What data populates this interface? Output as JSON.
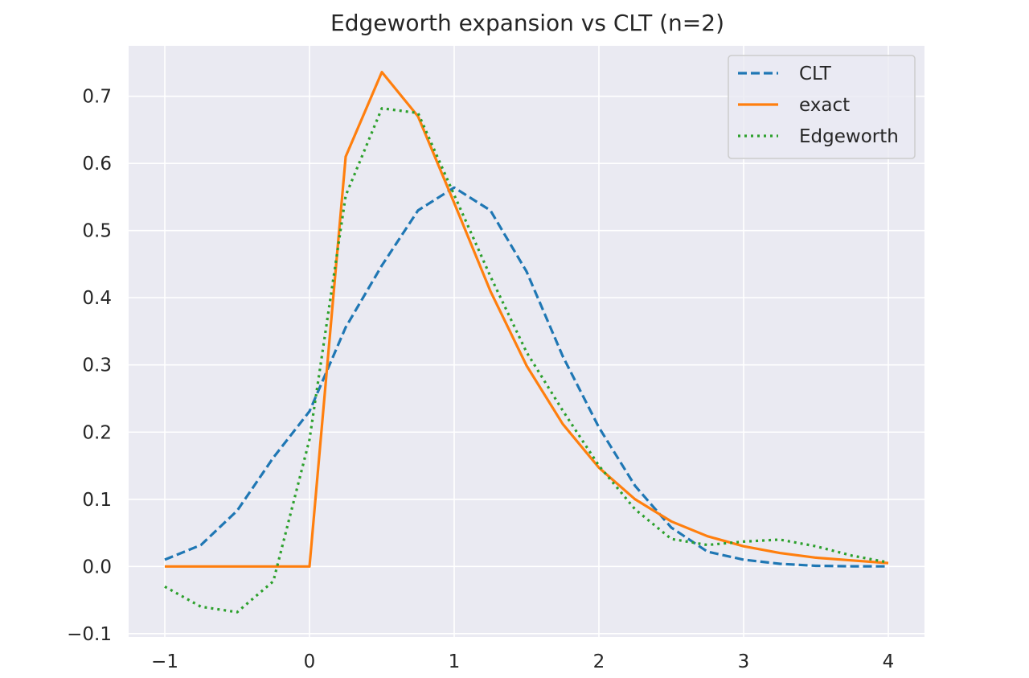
{
  "chart_data": {
    "type": "line",
    "title": "Edgeworth expansion vs CLT (n=2)",
    "xlabel": "",
    "ylabel": "",
    "xlim": [
      -1.25,
      4.25
    ],
    "ylim": [
      -0.105,
      0.775
    ],
    "xticks": [
      -1,
      0,
      1,
      2,
      3,
      4
    ],
    "xtick_labels": [
      "−1",
      "0",
      "1",
      "2",
      "3",
      "4"
    ],
    "yticks": [
      -0.1,
      0.0,
      0.1,
      0.2,
      0.3,
      0.4,
      0.5,
      0.6,
      0.7
    ],
    "ytick_labels": [
      "−0.1",
      "0.0",
      "0.1",
      "0.2",
      "0.3",
      "0.4",
      "0.5",
      "0.6",
      "0.7"
    ],
    "grid": true,
    "legend_position": "top-right",
    "x": [
      -1.0,
      -0.75,
      -0.5,
      -0.25,
      0.0,
      0.25,
      0.5,
      0.75,
      1.0,
      1.25,
      1.5,
      1.75,
      2.0,
      2.25,
      2.5,
      2.75,
      3.0,
      3.25,
      3.5,
      3.75,
      4.0
    ],
    "series": [
      {
        "name": "CLT",
        "style": "dashed",
        "color": "#1f77b4",
        "values": [
          0.01,
          0.032,
          0.083,
          0.162,
          0.231,
          0.356,
          0.448,
          0.53,
          0.564,
          0.53,
          0.439,
          0.313,
          0.207,
          0.12,
          0.058,
          0.022,
          0.01,
          0.004,
          0.001,
          0.0003,
          0.0001
        ]
      },
      {
        "name": "exact",
        "style": "solid",
        "color": "#ff7f0e",
        "values": [
          0.0,
          0.0,
          0.0,
          0.0,
          0.0,
          0.61,
          0.736,
          0.67,
          0.541,
          0.41,
          0.299,
          0.212,
          0.147,
          0.1,
          0.067,
          0.045,
          0.03,
          0.02,
          0.013,
          0.009,
          0.005
        ]
      },
      {
        "name": "Edgeworth",
        "style": "dotted",
        "color": "#2ca02c",
        "values": [
          -0.03,
          -0.06,
          -0.068,
          -0.022,
          0.189,
          0.552,
          0.682,
          0.675,
          0.553,
          0.432,
          0.319,
          0.232,
          0.15,
          0.085,
          0.041,
          0.032,
          0.037,
          0.04,
          0.03,
          0.016,
          0.006
        ]
      }
    ]
  }
}
